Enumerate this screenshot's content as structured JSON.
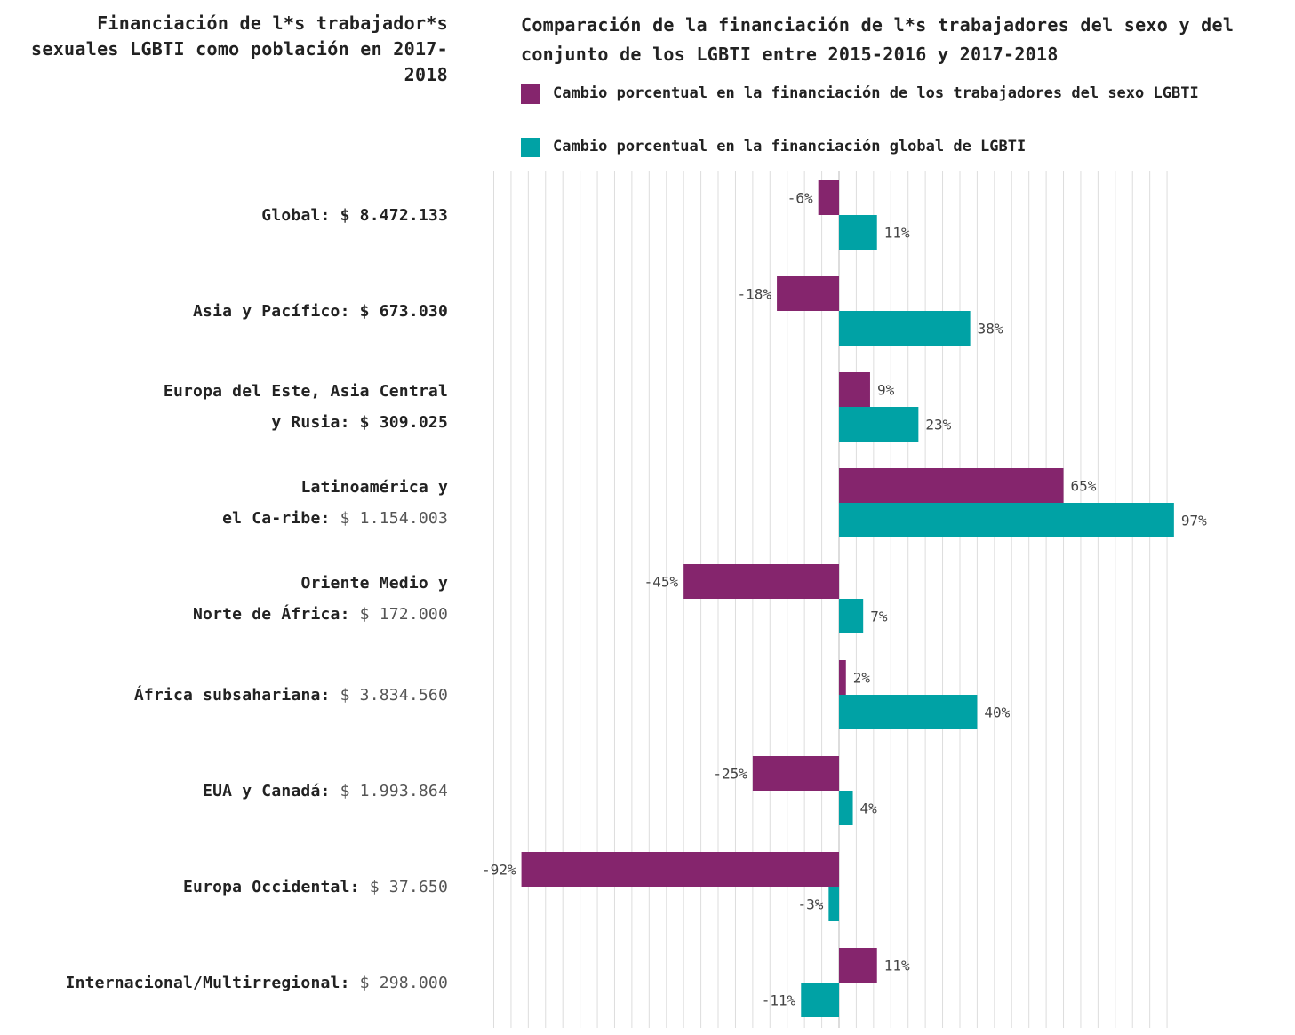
{
  "left_title": "Financiación de l*s trabajador*s sexuales LGBTI como población en 2017-2018",
  "right_title": "Comparación de la financiación de l*s trabajadores del sexo y del conjunto de los LGBTI entre 2015-2016 y 2017-2018",
  "colors": {
    "sex_work": "#85256d",
    "global": "#00a2a5",
    "grid": "#dddddd"
  },
  "legend": [
    {
      "label": "Cambio porcentual en la financiación de los trabajadores del sexo LGBTI",
      "color": "#85256d"
    },
    {
      "label": "Cambio porcentual en la financiación global de LGBTI",
      "color": "#00a2a5"
    }
  ],
  "rows": [
    {
      "line1": "",
      "label": "Global: ",
      "amount": "$ 8.472.133",
      "amount_bold": true
    },
    {
      "line1": "",
      "label": "Asia y Pacífico: ",
      "amount": "$ 673.030",
      "amount_bold": true
    },
    {
      "line1": "Europa del Este, Asia Central",
      "label": "y Rusia: ",
      "amount": "$ 309.025",
      "amount_bold": true
    },
    {
      "line1": "Latinoamérica y",
      "label": "el Ca-ribe: ",
      "amount": "$ 1.154.003",
      "amount_bold": false
    },
    {
      "line1": "Oriente Medio y",
      "label": "Norte de África: ",
      "amount": "$ 172.000",
      "amount_bold": false
    },
    {
      "line1": "",
      "label": "África subsahariana: ",
      "amount": "$ 3.834.560",
      "amount_bold": false
    },
    {
      "line1": "",
      "label": "EUA y Canadá: ",
      "amount": "$ 1.993.864",
      "amount_bold": false
    },
    {
      "line1": "",
      "label": "Europa Occidental: ",
      "amount": "$ 37.650",
      "amount_bold": false
    },
    {
      "line1": "",
      "label": "Internacional/Multirregional: ",
      "amount": "$ 298.000",
      "amount_bold": false
    }
  ],
  "chart_data": {
    "type": "bar",
    "orientation": "horizontal",
    "title": "Comparación de la financiación de l*s trabajadores del sexo y del conjunto de los LGBTI entre 2015-2016 y 2017-2018",
    "categories": [
      "Global",
      "Asia y Pacífico",
      "Europa del Este, Asia Central y Rusia",
      "Latinoamérica y el Ca-ribe",
      "Oriente Medio y Norte de África",
      "África subsahariana",
      "EUA y Canadá",
      "Europa Occidental",
      "Internacional/Multirregional"
    ],
    "series": [
      {
        "name": "Cambio porcentual en la financiación de los trabajadores del sexo LGBTI",
        "values": [
          -6,
          -18,
          9,
          65,
          -45,
          2,
          -25,
          -92,
          11
        ],
        "labels": [
          "-6%",
          "-18%",
          "9%",
          "65%",
          "-45%",
          "2%",
          "-25%",
          "-92%",
          "11%"
        ]
      },
      {
        "name": "Cambio porcentual en la financiación global de LGBTI",
        "values": [
          11,
          38,
          23,
          97,
          7,
          40,
          4,
          -3,
          -11
        ],
        "labels": [
          "11%",
          "38%",
          "23%",
          "97%",
          "7%",
          "40%",
          "4%",
          "-3%",
          "-11%"
        ]
      }
    ],
    "xlim": [
      -100,
      100
    ],
    "grid": true
  }
}
